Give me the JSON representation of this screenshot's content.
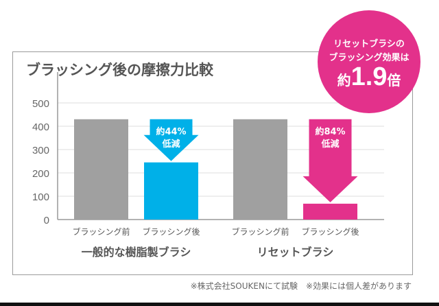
{
  "chart_data": {
    "type": "bar",
    "title": "ブラッシング後の摩擦力比較",
    "ylim": [
      0,
      500
    ],
    "yticks": [
      0,
      100,
      200,
      300,
      400,
      500
    ],
    "grid": true,
    "groups": [
      {
        "name": "一般的な樹脂製ブラシ",
        "categories": [
          "ブラッシング前",
          "ブラッシング後"
        ],
        "values": [
          430,
          245
        ],
        "colors": [
          "#a0a0a0",
          "#00b0e8"
        ],
        "annotation": [
          "約44%",
          "低減"
        ]
      },
      {
        "name": "リセットブラシ",
        "categories": [
          "ブラッシング前",
          "ブラッシング後"
        ],
        "values": [
          430,
          68
        ],
        "colors": [
          "#a0a0a0",
          "#e3318b"
        ],
        "annotation": [
          "約84%",
          "低減"
        ]
      }
    ]
  },
  "badge": {
    "line1": "リセットブラシの",
    "line2": "ブラッシング効果は",
    "prefix": "約",
    "value": "1.9",
    "suffix": "倍",
    "color": "#e3318b"
  },
  "footer": "※株式会社SOUKENにて試験　※効果には個人差があります"
}
